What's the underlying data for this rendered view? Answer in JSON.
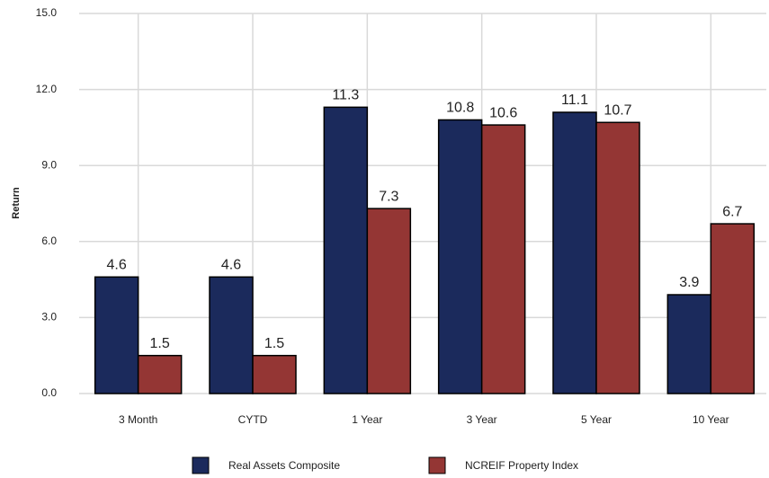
{
  "chart_data": {
    "type": "bar",
    "ylabel": "Return",
    "categories": [
      "3 Month",
      "CYTD",
      "1 Year",
      "3 Year",
      "5 Year",
      "10 Year"
    ],
    "series": [
      {
        "name": "Real Assets Composite",
        "color": "#1b2a5c",
        "values": [
          4.6,
          4.6,
          11.3,
          10.8,
          11.1,
          3.9
        ]
      },
      {
        "name": "NCREIF Property Index",
        "color": "#943634",
        "values": [
          1.5,
          1.5,
          7.3,
          10.6,
          10.7,
          6.7
        ]
      }
    ],
    "ylim": [
      0,
      15
    ],
    "yticks": [
      {
        "value": 0,
        "label": "0.0"
      },
      {
        "value": 3,
        "label": "3.0"
      },
      {
        "value": 6,
        "label": "6.0"
      },
      {
        "value": 9,
        "label": "9.0"
      },
      {
        "value": 12,
        "label": "12.0"
      },
      {
        "value": 15,
        "label": "15.0"
      }
    ],
    "grid": true,
    "legend": "bottom"
  }
}
